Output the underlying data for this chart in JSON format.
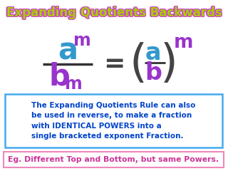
{
  "title": "Expanding Quotients Backwards",
  "title_color": "#aacc00",
  "title_outline": "#cc44cc",
  "bg_color": "#ffffff",
  "formula_left": {
    "a_color": "#3399cc",
    "m_top_color": "#9933cc",
    "b_color": "#9933cc",
    "m_bot_color": "#9933cc"
  },
  "formula_right": {
    "a_color": "#3399cc",
    "b_color": "#9933cc",
    "m_color": "#9933cc",
    "paren_color": "#444444"
  },
  "equals_color": "#444444",
  "text_box": {
    "text": "The Expanding Quotients Rule can also\nbe used in reverse, to make a fraction\nwith IDENTICAL POWERS into a\nsingle bracketed exponent Fraction.",
    "text_color": "#0044cc",
    "border_color": "#44aaee",
    "bg_color": "#ffffff"
  },
  "bottom_bar": {
    "text": "Eg. Different Top and Bottom, but same Powers.",
    "text_color": "#cc3399",
    "border_color": "#ee88bb",
    "bg_color": "#ffffff"
  }
}
